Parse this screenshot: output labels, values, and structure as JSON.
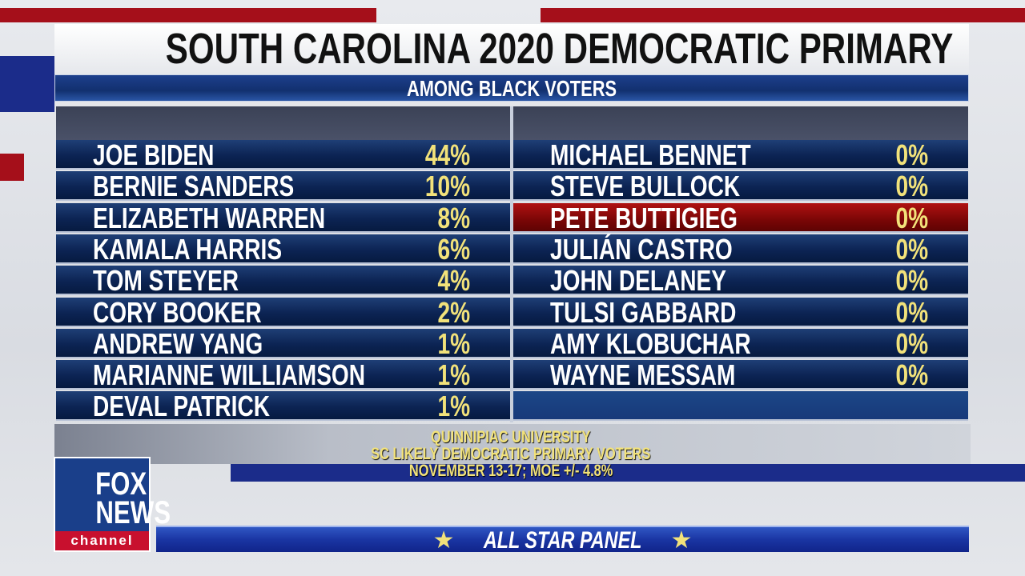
{
  "title": "SOUTH CAROLINA 2020 DEMOCRATIC PRIMARY",
  "subtitle": "AMONG BLACK VOTERS",
  "left": [
    {
      "name": "JOE BIDEN",
      "pct": "44%"
    },
    {
      "name": "BERNIE SANDERS",
      "pct": "10%"
    },
    {
      "name": "ELIZABETH WARREN",
      "pct": "8%"
    },
    {
      "name": "KAMALA HARRIS",
      "pct": "6%"
    },
    {
      "name": "TOM STEYER",
      "pct": "4%"
    },
    {
      "name": "CORY BOOKER",
      "pct": "2%"
    },
    {
      "name": "ANDREW YANG",
      "pct": "1%"
    },
    {
      "name": "MARIANNE WILLIAMSON",
      "pct": "1%"
    },
    {
      "name": "DEVAL PATRICK",
      "pct": "1%"
    }
  ],
  "right": [
    {
      "name": "MICHAEL BENNET",
      "pct": "0%"
    },
    {
      "name": "STEVE BULLOCK",
      "pct": "0%"
    },
    {
      "name": "PETE BUTTIGIEG",
      "pct": "0%",
      "highlight": true
    },
    {
      "name": "JULIÁN CASTRO",
      "pct": "0%"
    },
    {
      "name": "JOHN DELANEY",
      "pct": "0%"
    },
    {
      "name": "TULSI GABBARD",
      "pct": "0%"
    },
    {
      "name": "AMY KLOBUCHAR",
      "pct": "0%"
    },
    {
      "name": "WAYNE MESSAM",
      "pct": "0%"
    }
  ],
  "source": {
    "line1": "QUINNIPIAC UNIVERSITY",
    "line2": "SC LIKELY DEMOCRATIC PRIMARY VOTERS",
    "line3": "NOVEMBER 13-17; MOE +/- 4.8%"
  },
  "logo": {
    "line1": "FOX",
    "line2": "NEWS",
    "line3": "channel"
  },
  "bottom_bar": {
    "label": "ALL STAR PANEL",
    "star": "★"
  },
  "colors": {
    "row_blue": "#0c2454",
    "highlight_red": "#7a0606",
    "pct_yellow": "#f2e27a"
  }
}
